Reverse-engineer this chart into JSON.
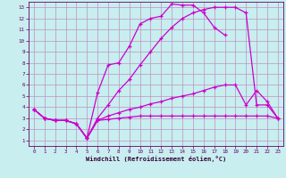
{
  "xlabel": "Windchill (Refroidissement éolien,°C)",
  "bg_color": "#c8eef0",
  "grid_color": "#c090c0",
  "line_color": "#cc00cc",
  "xlim": [
    -0.5,
    23.5
  ],
  "ylim": [
    0.5,
    13.5
  ],
  "xticks": [
    0,
    1,
    2,
    3,
    4,
    5,
    6,
    7,
    8,
    9,
    10,
    11,
    12,
    13,
    14,
    15,
    16,
    17,
    18,
    19,
    20,
    21,
    22,
    23
  ],
  "yticks": [
    1,
    2,
    3,
    4,
    5,
    6,
    7,
    8,
    9,
    10,
    11,
    12,
    13
  ],
  "lines": [
    {
      "x": [
        0,
        1,
        2,
        3,
        4,
        5,
        6,
        7,
        8,
        9,
        10,
        11,
        12,
        13,
        14,
        15,
        16,
        17,
        18,
        19,
        20,
        21,
        22,
        23
      ],
      "y": [
        3.8,
        3.0,
        2.8,
        2.8,
        2.5,
        1.2,
        5.3,
        7.8,
        8.0,
        9.5,
        11.5,
        12.0,
        12.2,
        13.3,
        13.2,
        13.2,
        12.5,
        11.2,
        10.5,
        null,
        null,
        null,
        null,
        null
      ]
    },
    {
      "x": [
        0,
        1,
        2,
        3,
        4,
        5,
        6,
        7,
        8,
        9,
        10,
        11,
        12,
        13,
        14,
        15,
        16,
        17,
        18,
        19,
        20,
        21,
        22,
        23
      ],
      "y": [
        3.8,
        3.0,
        2.8,
        2.8,
        2.5,
        1.2,
        3.0,
        4.2,
        5.5,
        6.5,
        7.8,
        9.0,
        10.2,
        11.2,
        12.0,
        12.5,
        12.8,
        13.0,
        13.0,
        13.0,
        12.5,
        4.2,
        4.2,
        3.0
      ]
    },
    {
      "x": [
        0,
        1,
        2,
        3,
        4,
        5,
        6,
        7,
        8,
        9,
        10,
        11,
        12,
        13,
        14,
        15,
        16,
        17,
        18,
        19,
        20,
        21,
        22,
        23
      ],
      "y": [
        3.8,
        3.0,
        2.8,
        2.8,
        2.5,
        1.2,
        2.8,
        3.2,
        3.5,
        3.8,
        4.0,
        4.3,
        4.5,
        4.8,
        5.0,
        5.2,
        5.5,
        5.8,
        6.0,
        6.0,
        4.2,
        5.5,
        4.5,
        3.0
      ]
    },
    {
      "x": [
        0,
        1,
        2,
        3,
        4,
        5,
        6,
        7,
        8,
        9,
        10,
        11,
        12,
        13,
        14,
        15,
        16,
        17,
        18,
        19,
        20,
        21,
        22,
        23
      ],
      "y": [
        3.8,
        3.0,
        2.8,
        2.8,
        2.5,
        1.2,
        2.8,
        2.9,
        3.0,
        3.1,
        3.2,
        3.2,
        3.2,
        3.2,
        3.2,
        3.2,
        3.2,
        3.2,
        3.2,
        3.2,
        3.2,
        3.2,
        3.2,
        3.0
      ]
    }
  ]
}
